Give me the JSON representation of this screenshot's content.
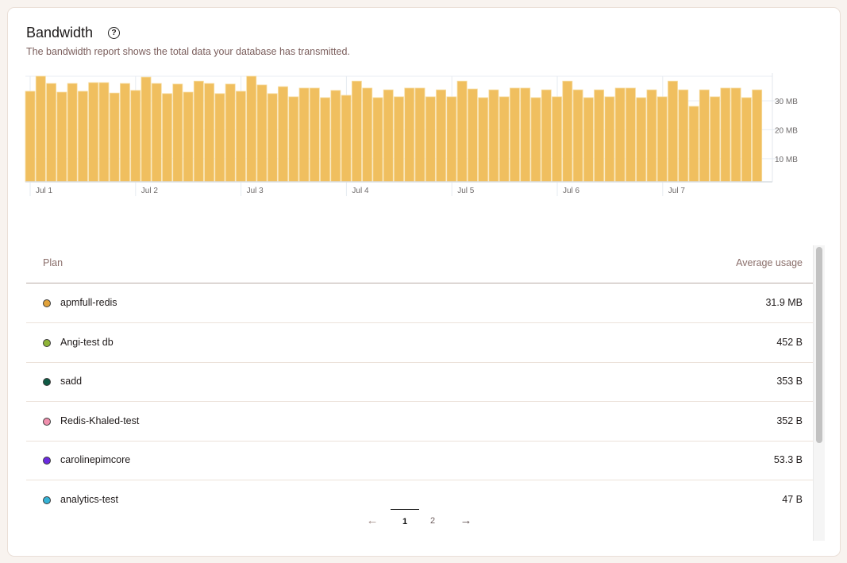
{
  "header": {
    "title": "Bandwidth",
    "help_icon": "question-circle-icon",
    "subtitle": "The bandwidth report shows the total data your database has transmitted."
  },
  "chart_data": {
    "type": "bar",
    "x_tick_labels": [
      "Jul 1",
      "Jul 2",
      "Jul 3",
      "Jul 4",
      "Jul 5",
      "Jul 6",
      "Jul 7"
    ],
    "y_tick_labels": [
      "10 MB",
      "20 MB",
      "30 MB"
    ],
    "y_ticks": [
      10,
      20,
      30
    ],
    "ylim": [
      2,
      38.5
    ],
    "y_axis_position": "right",
    "grid": true,
    "bar_color": "#f0bf5f",
    "values": [
      33.3,
      38.5,
      36.0,
      33.0,
      36.0,
      33.3,
      36.3,
      36.3,
      32.7,
      36.0,
      33.6,
      38.2,
      36.0,
      32.5,
      35.8,
      33.0,
      36.8,
      36.0,
      32.5,
      35.8,
      33.3,
      38.5,
      35.5,
      32.5,
      34.9,
      31.4,
      34.4,
      34.4,
      31.1,
      33.6,
      31.9,
      36.8,
      34.4,
      31.1,
      33.8,
      31.4,
      34.4,
      34.4,
      31.4,
      33.8,
      31.4,
      36.8,
      34.1,
      31.1,
      33.8,
      31.4,
      34.4,
      34.4,
      31.1,
      33.8,
      31.4,
      36.8,
      33.8,
      31.1,
      33.8,
      31.4,
      34.4,
      34.4,
      31.1,
      33.8,
      31.4,
      36.8,
      33.8,
      28.1,
      33.8,
      31.4,
      34.4,
      34.4,
      31.1,
      33.8
    ]
  },
  "table": {
    "headers": {
      "plan": "Plan",
      "usage": "Average usage"
    },
    "rows": [
      {
        "name": "apmfull-redis",
        "usage": "31.9 MB",
        "color": "#e1a23a"
      },
      {
        "name": "Angi-test db",
        "usage": "452 B",
        "color": "#8fb437"
      },
      {
        "name": "sadd",
        "usage": "353 B",
        "color": "#0f5a45"
      },
      {
        "name": "Redis-Khaled-test",
        "usage": "352 B",
        "color": "#f08fad"
      },
      {
        "name": "carolinepimcore",
        "usage": "53.3 B",
        "color": "#6b2be0"
      },
      {
        "name": "analytics-test",
        "usage": "47 B",
        "color": "#35b3d6"
      }
    ]
  },
  "pagination": {
    "prev_icon": "arrow-left-icon",
    "pages": [
      "1",
      "2"
    ],
    "current": "1",
    "next_icon": "arrow-right-icon",
    "prev": "←",
    "next": "→"
  }
}
